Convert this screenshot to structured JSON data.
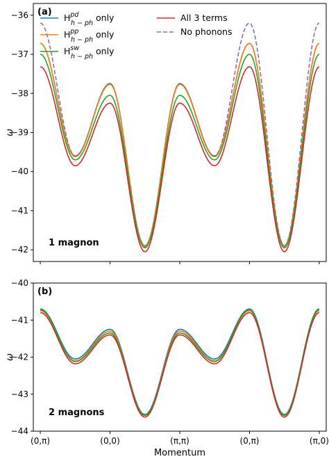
{
  "chart_data": [
    {
      "type": "line",
      "panel_label": "(a)",
      "annotation": "1 magnon",
      "ylabel": "ω",
      "xlabel": "",
      "ylim": [
        -42.3,
        -35.7
      ],
      "yticks": [
        -42,
        -41,
        -40,
        -39,
        -38,
        -37,
        -36
      ],
      "grid": false,
      "legend_placement": "top",
      "x_ticks": [
        "(0,π)",
        "(0,0)",
        "(π,π)",
        "(0,π)",
        "(π,0)"
      ],
      "series": [
        {
          "name": "No phonons",
          "legend_main": "No phonons",
          "color": "#9467bd",
          "dashed": true,
          "keypoints": [
            {
              "x": 0.0,
              "y": -36.2
            },
            {
              "x": 0.5,
              "y": -39.6
            },
            {
              "x": 1.0,
              "y": -37.75
            },
            {
              "x": 1.5,
              "y": -41.9
            },
            {
              "x": 2.0,
              "y": -37.75
            },
            {
              "x": 2.5,
              "y": -39.6
            },
            {
              "x": 3.0,
              "y": -36.2
            },
            {
              "x": 3.5,
              "y": -41.9
            },
            {
              "x": 4.0,
              "y": -36.2
            }
          ]
        },
        {
          "name": "H_{h-ph}^{pd} only",
          "legend_main": "H",
          "legend_sup": "pd",
          "legend_sub": "h − ph",
          "legend_suffix": "only",
          "color": "#1f77b4",
          "dashed": false,
          "keypoints": [
            {
              "x": 0.0,
              "y": -36.72
            },
            {
              "x": 0.5,
              "y": -39.6
            },
            {
              "x": 1.0,
              "y": -37.75
            },
            {
              "x": 1.5,
              "y": -41.9
            },
            {
              "x": 2.0,
              "y": -37.75
            },
            {
              "x": 2.5,
              "y": -39.6
            },
            {
              "x": 3.0,
              "y": -36.72
            },
            {
              "x": 3.5,
              "y": -41.9
            },
            {
              "x": 4.0,
              "y": -36.72
            }
          ]
        },
        {
          "name": "H_{h-ph}^{pp} only",
          "legend_main": "H",
          "legend_sup": "pp",
          "legend_sub": "h − ph",
          "legend_suffix": "only",
          "color": "#ff7f0e",
          "dashed": false,
          "keypoints": [
            {
              "x": 0.0,
              "y": -36.72
            },
            {
              "x": 0.5,
              "y": -39.62
            },
            {
              "x": 1.0,
              "y": -37.77
            },
            {
              "x": 1.5,
              "y": -41.92
            },
            {
              "x": 2.0,
              "y": -37.77
            },
            {
              "x": 2.5,
              "y": -39.62
            },
            {
              "x": 3.0,
              "y": -36.72
            },
            {
              "x": 3.5,
              "y": -41.92
            },
            {
              "x": 4.0,
              "y": -36.72
            }
          ]
        },
        {
          "name": "H_{h-ph}^{sw} only",
          "legend_main": "H",
          "legend_sup": "sw",
          "legend_sub": "h − ph",
          "legend_suffix": "only",
          "color": "#2ca02c",
          "dashed": false,
          "keypoints": [
            {
              "x": 0.0,
              "y": -37.0
            },
            {
              "x": 0.5,
              "y": -39.7
            },
            {
              "x": 1.0,
              "y": -38.05
            },
            {
              "x": 1.5,
              "y": -41.95
            },
            {
              "x": 2.0,
              "y": -38.05
            },
            {
              "x": 2.5,
              "y": -39.7
            },
            {
              "x": 3.0,
              "y": -37.0
            },
            {
              "x": 3.5,
              "y": -41.95
            },
            {
              "x": 4.0,
              "y": -37.0
            }
          ]
        },
        {
          "name": "All 3 terms",
          "legend_main": "All 3 terms",
          "color": "#d62728",
          "dashed": false,
          "keypoints": [
            {
              "x": 0.0,
              "y": -37.32
            },
            {
              "x": 0.5,
              "y": -39.85
            },
            {
              "x": 1.0,
              "y": -38.25
            },
            {
              "x": 1.5,
              "y": -42.05
            },
            {
              "x": 2.0,
              "y": -38.25
            },
            {
              "x": 2.5,
              "y": -39.85
            },
            {
              "x": 3.0,
              "y": -37.32
            },
            {
              "x": 3.5,
              "y": -42.05
            },
            {
              "x": 4.0,
              "y": -37.32
            }
          ]
        }
      ]
    },
    {
      "type": "line",
      "panel_label": "(b)",
      "annotation": "2 magnons",
      "ylabel": "ω",
      "xlabel": "Momentum",
      "ylim": [
        -44.0,
        -40.0
      ],
      "yticks": [
        -44,
        -43,
        -42,
        -41,
        -40
      ],
      "grid": false,
      "x_ticks": [
        "(0,π)",
        "(0,0)",
        "(π,π)",
        "(0,π)",
        "(π,0)"
      ],
      "series": [
        {
          "name": "No phonons",
          "color": "#9467bd",
          "dashed": true,
          "keypoints": [
            {
              "x": 0.0,
              "y": -40.72
            },
            {
              "x": 0.5,
              "y": -42.05
            },
            {
              "x": 1.0,
              "y": -41.25
            },
            {
              "x": 1.5,
              "y": -43.55
            },
            {
              "x": 2.0,
              "y": -41.25
            },
            {
              "x": 2.5,
              "y": -42.05
            },
            {
              "x": 3.0,
              "y": -40.72
            },
            {
              "x": 3.5,
              "y": -43.55
            },
            {
              "x": 4.0,
              "y": -40.72
            }
          ]
        },
        {
          "name": "H_{h-ph}^{pd} only",
          "color": "#1f77b4",
          "dashed": false,
          "keypoints": [
            {
              "x": 0.0,
              "y": -40.7
            },
            {
              "x": 0.5,
              "y": -42.05
            },
            {
              "x": 1.0,
              "y": -41.25
            },
            {
              "x": 1.5,
              "y": -43.55
            },
            {
              "x": 2.0,
              "y": -41.25
            },
            {
              "x": 2.5,
              "y": -42.05
            },
            {
              "x": 3.0,
              "y": -40.7
            },
            {
              "x": 3.5,
              "y": -43.55
            },
            {
              "x": 4.0,
              "y": -40.7
            }
          ]
        },
        {
          "name": "H_{h-ph}^{pp} only",
          "color": "#ff7f0e",
          "dashed": false,
          "keypoints": [
            {
              "x": 0.0,
              "y": -40.75
            },
            {
              "x": 0.5,
              "y": -42.1
            },
            {
              "x": 1.0,
              "y": -41.3
            },
            {
              "x": 1.5,
              "y": -43.58
            },
            {
              "x": 2.0,
              "y": -41.3
            },
            {
              "x": 2.5,
              "y": -42.1
            },
            {
              "x": 3.0,
              "y": -40.75
            },
            {
              "x": 3.5,
              "y": -43.58
            },
            {
              "x": 4.0,
              "y": -40.75
            }
          ]
        },
        {
          "name": "H_{h-ph}^{sw} only",
          "color": "#2ca02c",
          "dashed": false,
          "keypoints": [
            {
              "x": 0.0,
              "y": -40.72
            },
            {
              "x": 0.5,
              "y": -42.12
            },
            {
              "x": 1.0,
              "y": -41.35
            },
            {
              "x": 1.5,
              "y": -43.57
            },
            {
              "x": 2.0,
              "y": -41.35
            },
            {
              "x": 2.5,
              "y": -42.12
            },
            {
              "x": 3.0,
              "y": -40.72
            },
            {
              "x": 3.5,
              "y": -43.57
            },
            {
              "x": 4.0,
              "y": -40.72
            }
          ]
        },
        {
          "name": "All 3 terms",
          "color": "#d62728",
          "dashed": false,
          "keypoints": [
            {
              "x": 0.0,
              "y": -40.8
            },
            {
              "x": 0.5,
              "y": -42.18
            },
            {
              "x": 1.0,
              "y": -41.4
            },
            {
              "x": 1.5,
              "y": -43.62
            },
            {
              "x": 2.0,
              "y": -41.4
            },
            {
              "x": 2.5,
              "y": -42.18
            },
            {
              "x": 3.0,
              "y": -40.8
            },
            {
              "x": 3.5,
              "y": -43.62
            },
            {
              "x": 4.0,
              "y": -40.8
            }
          ]
        }
      ]
    }
  ]
}
